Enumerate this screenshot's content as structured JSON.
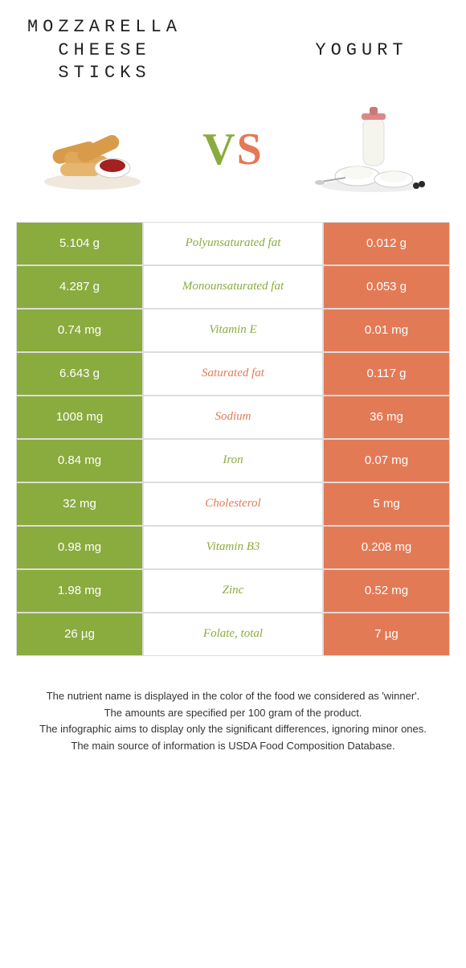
{
  "colors": {
    "left": "#8aab3e",
    "right": "#e37a56",
    "nutrient_left_color": "#8aab3e",
    "nutrient_right_color": "#e37a56"
  },
  "header": {
    "left_title": "MOZZARELLA CHEESE STICKS",
    "right_title": "YOGURT",
    "vs_v": "V",
    "vs_s": "S"
  },
  "rows": [
    {
      "left": "5.104 g",
      "nutrient": "Polyunsaturated fat",
      "right": "0.012 g",
      "winner": "left"
    },
    {
      "left": "4.287 g",
      "nutrient": "Monounsaturated fat",
      "right": "0.053 g",
      "winner": "left"
    },
    {
      "left": "0.74 mg",
      "nutrient": "Vitamin E",
      "right": "0.01 mg",
      "winner": "left"
    },
    {
      "left": "6.643 g",
      "nutrient": "Saturated fat",
      "right": "0.117 g",
      "winner": "right"
    },
    {
      "left": "1008 mg",
      "nutrient": "Sodium",
      "right": "36 mg",
      "winner": "right"
    },
    {
      "left": "0.84 mg",
      "nutrient": "Iron",
      "right": "0.07 mg",
      "winner": "left"
    },
    {
      "left": "32 mg",
      "nutrient": "Cholesterol",
      "right": "5 mg",
      "winner": "right"
    },
    {
      "left": "0.98 mg",
      "nutrient": "Vitamin B3",
      "right": "0.208 mg",
      "winner": "left"
    },
    {
      "left": "1.98 mg",
      "nutrient": "Zinc",
      "right": "0.52 mg",
      "winner": "left"
    },
    {
      "left": "26 µg",
      "nutrient": "Folate, total",
      "right": "7 µg",
      "winner": "left"
    }
  ],
  "footer": {
    "line1": "The nutrient name is displayed in the color of the food we considered as 'winner'.",
    "line2": "The amounts are specified per 100 gram of the product.",
    "line3": "The infographic aims to display only the significant differences, ignoring minor ones.",
    "line4": "The main source of information is USDA Food Composition Database."
  }
}
